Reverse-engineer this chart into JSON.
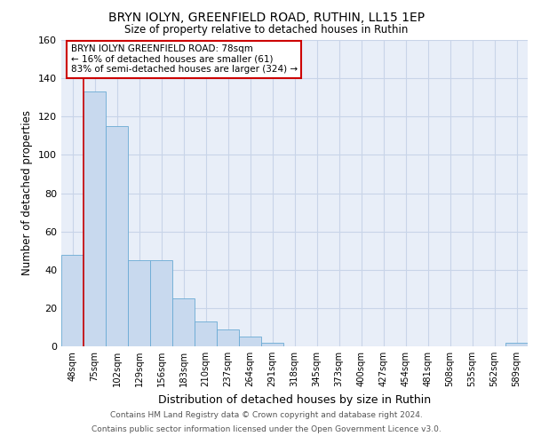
{
  "title1": "BRYN IOLYN, GREENFIELD ROAD, RUTHIN, LL15 1EP",
  "title2": "Size of property relative to detached houses in Ruthin",
  "xlabel": "Distribution of detached houses by size in Ruthin",
  "ylabel": "Number of detached properties",
  "categories": [
    "48sqm",
    "75sqm",
    "102sqm",
    "129sqm",
    "156sqm",
    "183sqm",
    "210sqm",
    "237sqm",
    "264sqm",
    "291sqm",
    "318sqm",
    "345sqm",
    "373sqm",
    "400sqm",
    "427sqm",
    "454sqm",
    "481sqm",
    "508sqm",
    "535sqm",
    "562sqm",
    "589sqm"
  ],
  "values": [
    48,
    133,
    115,
    45,
    45,
    25,
    13,
    9,
    5,
    2,
    0,
    0,
    0,
    0,
    0,
    0,
    0,
    0,
    0,
    0,
    2
  ],
  "bar_color": "#c8d9ee",
  "bar_edge_color": "#6aaad4",
  "grid_color": "#c8d4e8",
  "bg_color": "#e8eef8",
  "vline_color": "#cc0000",
  "annotation_title": "BRYN IOLYN GREENFIELD ROAD: 78sqm",
  "annotation_line1": "← 16% of detached houses are smaller (61)",
  "annotation_line2": "83% of semi-detached houses are larger (324) →",
  "annotation_box_color": "#ffffff",
  "annotation_border_color": "#cc0000",
  "footer1": "Contains HM Land Registry data © Crown copyright and database right 2024.",
  "footer2": "Contains public sector information licensed under the Open Government Licence v3.0.",
  "ylim": [
    0,
    160
  ],
  "yticks": [
    0,
    20,
    40,
    60,
    80,
    100,
    120,
    140,
    160
  ]
}
